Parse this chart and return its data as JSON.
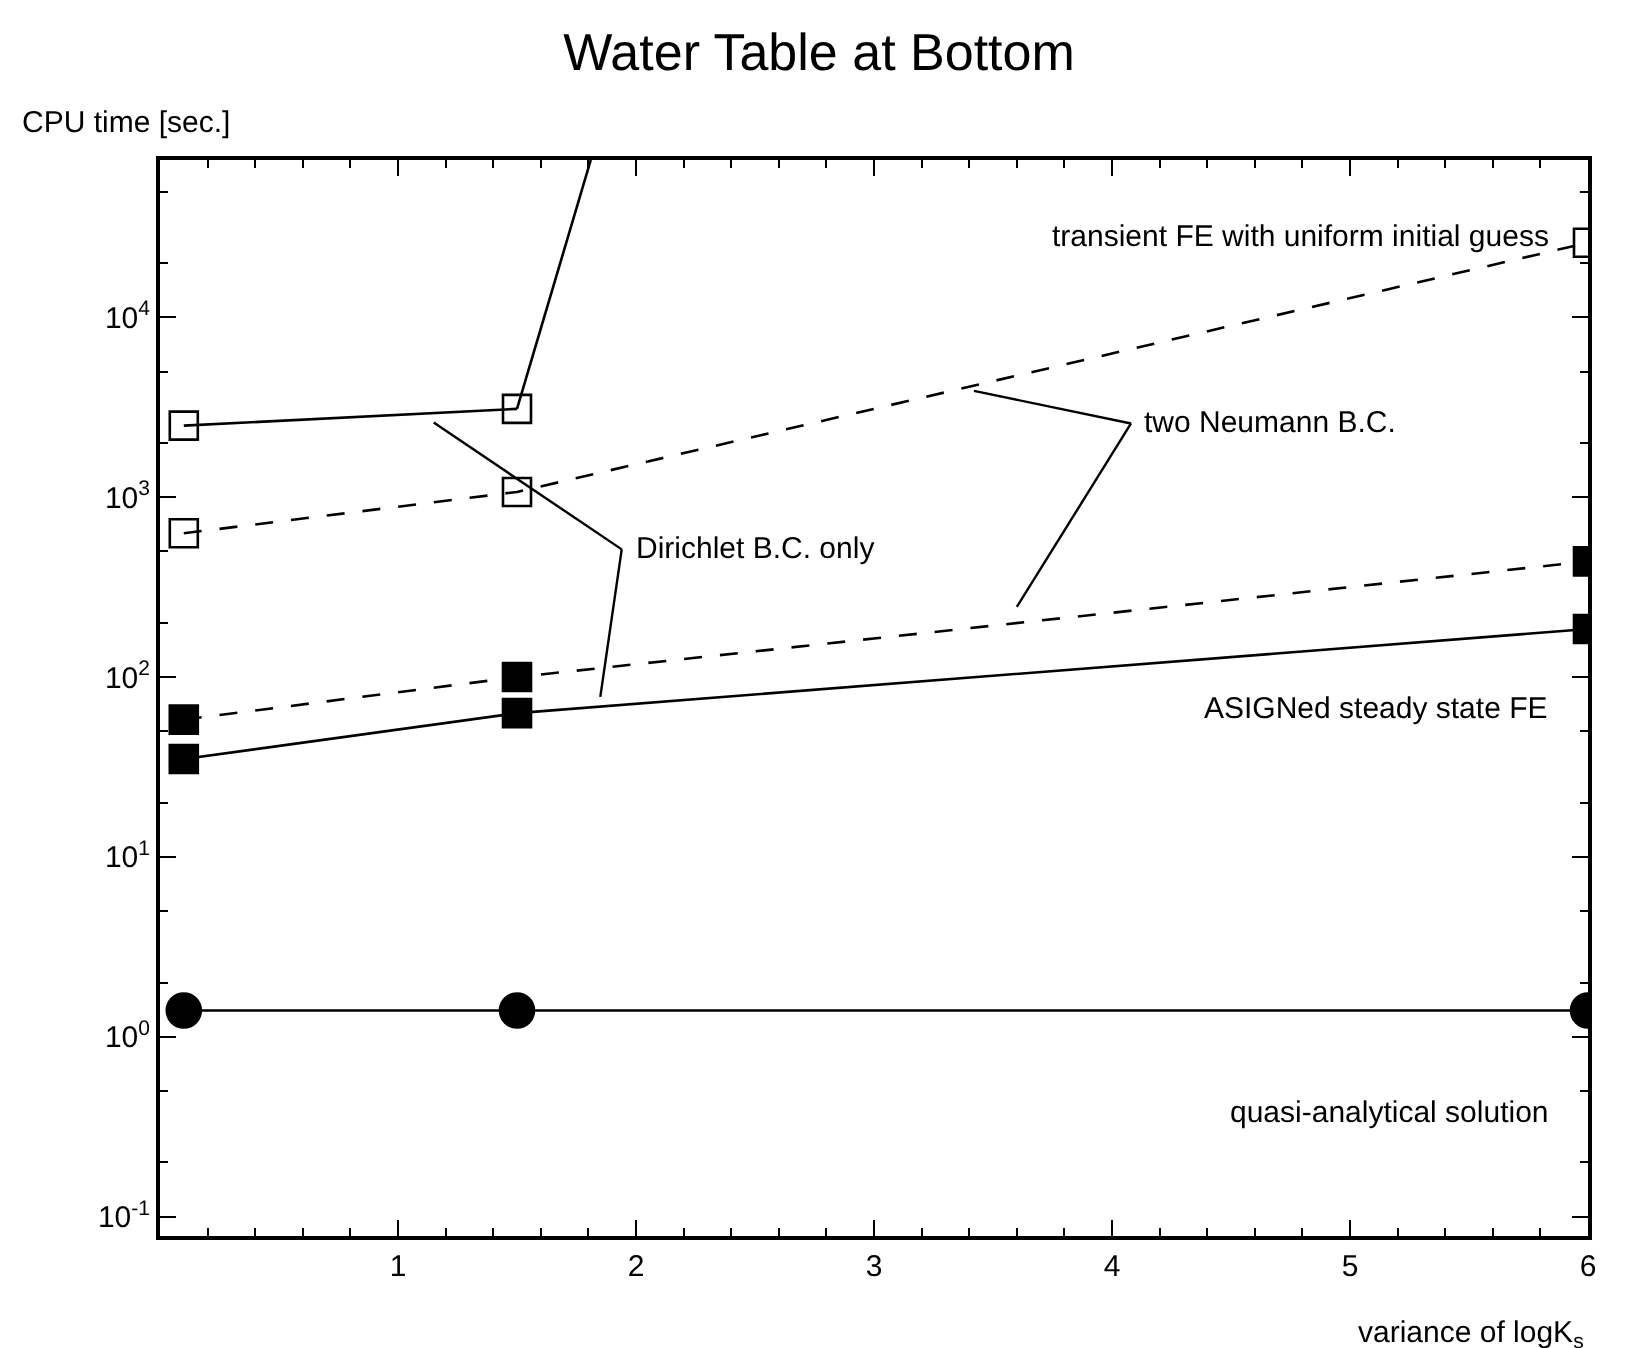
{
  "chart_data": {
    "type": "line",
    "title": "Water Table at Bottom",
    "xlabel": "variance of logK$_{s}$",
    "ylabel": "CPU time [sec.]",
    "log": "y",
    "xlim": [
      0,
      6
    ],
    "ylim": [
      0.078,
      75000
    ],
    "xticks": [
      1,
      2,
      3,
      4,
      5,
      6
    ],
    "yticks": [
      {
        "value": 0.1,
        "label": "10$^{-1}$"
      },
      {
        "value": 1,
        "label": "10$^{0}$"
      },
      {
        "value": 10,
        "label": "10$^{1}$"
      },
      {
        "value": 100,
        "label": "10$^{2}$"
      },
      {
        "value": 1000,
        "label": "10$^{3}$"
      },
      {
        "value": 10000,
        "label": "10$^{4}$"
      }
    ],
    "series": [
      {
        "color": "#000000",
        "marker": "square-open",
        "line_style": "solid",
        "x": [
          0.1,
          1.5
        ],
        "values": [
          2500,
          3100
        ]
      },
      {
        "color": "#000000",
        "marker": "none",
        "line_style": "solid",
        "x": [
          1.5,
          1.81
        ],
        "values": [
          3100,
          75000
        ]
      },
      {
        "color": "#000000",
        "marker": "square-open",
        "line_style": "dashed",
        "x": [
          0.1,
          1.5,
          6
        ],
        "values": [
          630,
          1070,
          26000
        ]
      },
      {
        "color": "#000000",
        "marker": "square",
        "line_style": "dashed",
        "x": [
          0.1,
          1.5,
          6
        ],
        "values": [
          58,
          100,
          440
        ]
      },
      {
        "color": "#000000",
        "marker": "square",
        "line_style": "solid",
        "x": [
          0.1,
          1.5,
          6
        ],
        "values": [
          35,
          63,
          185
        ]
      },
      {
        "color": "#000000",
        "marker": "circle",
        "line_style": "solid",
        "x": [
          0.1,
          1.5,
          6
        ],
        "values": [
          1.4,
          1.4,
          1.4
        ]
      }
    ],
    "annotations": [
      "transient FE with uniform initial guess",
      {
        "text": "two Neumann B.C.",
        "x": 3.42,
        "y": 3900
      },
      {
        "text": "Dirichlet B.C. only",
        "x": 1.15,
        "y": 2600
      },
      "ASIGNed steady state FE",
      "quasi-analytical solution"
    ]
  }
}
